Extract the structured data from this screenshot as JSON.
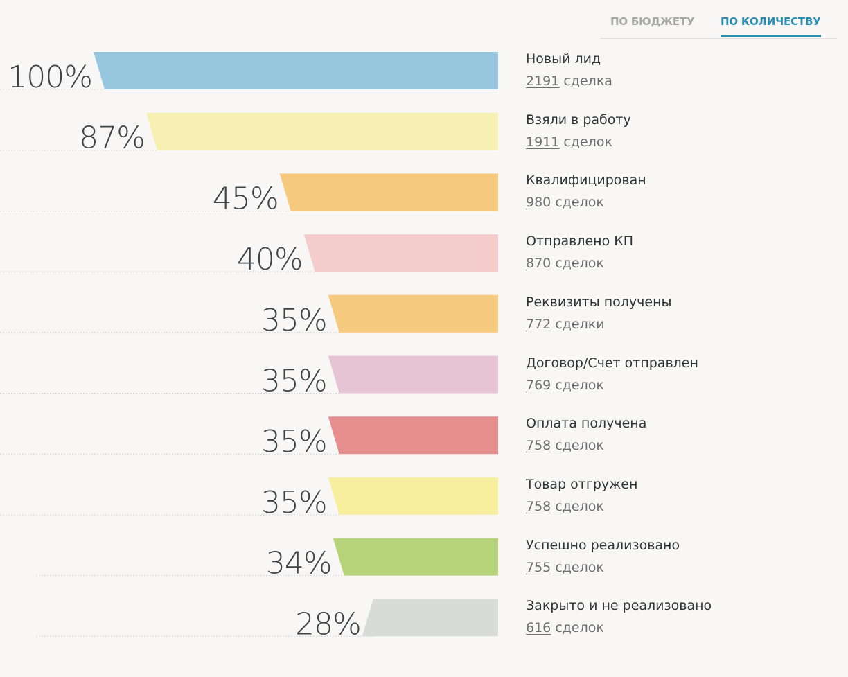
{
  "tabs": {
    "budget_label": "ПО БЮДЖЕТУ",
    "count_label": "ПО КОЛИЧЕСТВУ",
    "active": "count",
    "active_color": "#2a8db2"
  },
  "chart_data": {
    "type": "funnel",
    "title": "",
    "unit_word_note": "deals count per stage",
    "stages": [
      {
        "name": "Новый лид",
        "percent": 100,
        "percent_label": "100%",
        "count": 2191,
        "count_word": "сделка",
        "color": "#97c7df"
      },
      {
        "name": "Взяли в работу",
        "percent": 87,
        "percent_label": "87%",
        "count": 1911,
        "count_word": "сделок",
        "color": "#f7f0b3"
      },
      {
        "name": "Квалифицирован",
        "percent": 45,
        "percent_label": "45%",
        "count": 980,
        "count_word": "сделок",
        "color": "#f5c97e"
      },
      {
        "name": "Отправлено КП",
        "percent": 40,
        "percent_label": "40%",
        "count": 870,
        "count_word": "сделок",
        "color": "#f4cccc"
      },
      {
        "name": "Реквизиты получены",
        "percent": 35,
        "percent_label": "35%",
        "count": 772,
        "count_word": "сделки",
        "color": "#f5c97e"
      },
      {
        "name": "Договор/Счет отправлен",
        "percent": 35,
        "percent_label": "35%",
        "count": 769,
        "count_word": "сделок",
        "color": "#e6c4d3"
      },
      {
        "name": "Оплата получена",
        "percent": 35,
        "percent_label": "35%",
        "count": 758,
        "count_word": "сделок",
        "color": "#e68e8e"
      },
      {
        "name": "Товар отгружен",
        "percent": 35,
        "percent_label": "35%",
        "count": 758,
        "count_word": "сделок",
        "color": "#f7ee9e"
      },
      {
        "name": "Успешно реализовано",
        "percent": 34,
        "percent_label": "34%",
        "count": 755,
        "count_word": "сделок",
        "color": "#b8d47a"
      },
      {
        "name": "Закрыто и не реализовано",
        "percent": 28,
        "percent_label": "28%",
        "count": 616,
        "count_word": "сделок",
        "color": "#d9dbd8"
      }
    ]
  }
}
